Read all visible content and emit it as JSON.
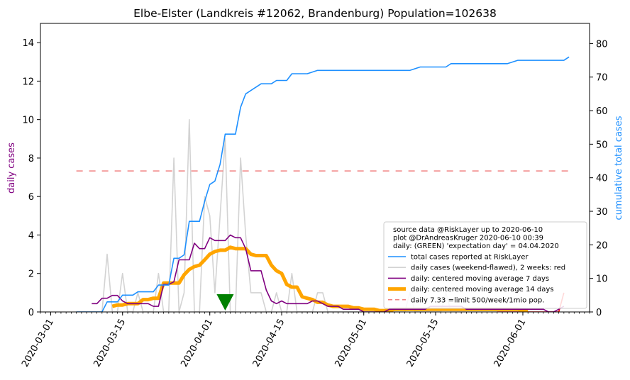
{
  "chart_data": {
    "type": "line",
    "title": "Elbe-Elster (Landkreis #12062, Brandenburg) Population=102638",
    "ylabel_left": "daily cases",
    "ylabel_right": "cumulative total cases",
    "ylim_left": [
      0,
      15
    ],
    "ylim_right": [
      0,
      86
    ],
    "yticks_left": [
      0,
      2,
      4,
      6,
      8,
      10,
      12,
      14
    ],
    "yticks_right": [
      0,
      10,
      20,
      30,
      40,
      50,
      60,
      70,
      80
    ],
    "xlim": [
      "2020-02-28",
      "2020-06-14"
    ],
    "xticks": [
      "2020-03-01",
      "2020-03-15",
      "2020-04-01",
      "2020-04-15",
      "2020-05-01",
      "2020-05-15",
      "2020-06-01"
    ],
    "grid": false,
    "legend_position": "lower-right",
    "legend_header": [
      "source data @RiskLayer up to 2020-06-10",
      "plot @DrAndreasKruger 2020-06-10 00:39",
      "daily: (GREEN) 'expectation day' = 04.04.2020"
    ],
    "colors": {
      "total": "#1e90ff",
      "daily": "#d3d3d3",
      "daily_recent": "#ff0000",
      "ma7": "#800080",
      "ma14": "#ffa500",
      "limit": "#f08080",
      "expectation": "#008000"
    },
    "expectation_day": "2020-04-04",
    "series": [
      {
        "name": "total cases reported at RiskLayer",
        "axis": "right",
        "points": [
          [
            "2020-03-06",
            0
          ],
          [
            "2020-03-11",
            0
          ],
          [
            "2020-03-12",
            3
          ],
          [
            "2020-03-14",
            3
          ],
          [
            "2020-03-15",
            5
          ],
          [
            "2020-03-17",
            5
          ],
          [
            "2020-03-18",
            6
          ],
          [
            "2020-03-21",
            6
          ],
          [
            "2020-03-22",
            8
          ],
          [
            "2020-03-24",
            8
          ],
          [
            "2020-03-25",
            16
          ],
          [
            "2020-03-26",
            16
          ],
          [
            "2020-03-27",
            17
          ],
          [
            "2020-03-28",
            27
          ],
          [
            "2020-03-30",
            27
          ],
          [
            "2020-03-31",
            33
          ],
          [
            "2020-04-01",
            38
          ],
          [
            "2020-04-02",
            39
          ],
          [
            "2020-04-03",
            44
          ],
          [
            "2020-04-04",
            53
          ],
          [
            "2020-04-06",
            53
          ],
          [
            "2020-04-07",
            61
          ],
          [
            "2020-04-08",
            65
          ],
          [
            "2020-04-10",
            67
          ],
          [
            "2020-04-11",
            68
          ],
          [
            "2020-04-13",
            68
          ],
          [
            "2020-04-14",
            69
          ],
          [
            "2020-04-16",
            69
          ],
          [
            "2020-04-17",
            71
          ],
          [
            "2020-04-20",
            71
          ],
          [
            "2020-04-22",
            72
          ],
          [
            "2020-05-10",
            72
          ],
          [
            "2020-05-12",
            73
          ],
          [
            "2020-05-17",
            73
          ],
          [
            "2020-05-18",
            74
          ],
          [
            "2020-05-29",
            74
          ],
          [
            "2020-05-31",
            75
          ],
          [
            "2020-06-09",
            75
          ],
          [
            "2020-06-10",
            76
          ]
        ]
      },
      {
        "name": "daily cases (weekend-flawed), 2 weeks: red",
        "axis": "left",
        "points": [
          [
            "2020-03-06",
            0
          ],
          [
            "2020-03-11",
            0
          ],
          [
            "2020-03-12",
            3
          ],
          [
            "2020-03-13",
            0
          ],
          [
            "2020-03-14",
            0
          ],
          [
            "2020-03-15",
            2
          ],
          [
            "2020-03-16",
            0
          ],
          [
            "2020-03-17",
            0
          ],
          [
            "2020-03-18",
            1
          ],
          [
            "2020-03-19",
            0
          ],
          [
            "2020-03-20",
            0
          ],
          [
            "2020-03-21",
            0
          ],
          [
            "2020-03-22",
            2
          ],
          [
            "2020-03-23",
            0
          ],
          [
            "2020-03-24",
            0
          ],
          [
            "2020-03-25",
            8
          ],
          [
            "2020-03-26",
            0
          ],
          [
            "2020-03-27",
            1
          ],
          [
            "2020-03-28",
            10
          ],
          [
            "2020-03-29",
            0
          ],
          [
            "2020-03-30",
            0
          ],
          [
            "2020-03-31",
            6
          ],
          [
            "2020-04-01",
            5
          ],
          [
            "2020-04-02",
            1
          ],
          [
            "2020-04-03",
            5
          ],
          [
            "2020-04-04",
            9
          ],
          [
            "2020-04-05",
            0
          ],
          [
            "2020-04-06",
            0
          ],
          [
            "2020-04-07",
            8
          ],
          [
            "2020-04-08",
            4
          ],
          [
            "2020-04-09",
            1
          ],
          [
            "2020-04-10",
            1
          ],
          [
            "2020-04-11",
            1
          ],
          [
            "2020-04-12",
            0
          ],
          [
            "2020-04-13",
            0
          ],
          [
            "2020-04-14",
            1
          ],
          [
            "2020-04-15",
            0
          ],
          [
            "2020-04-16",
            0
          ],
          [
            "2020-04-17",
            2
          ],
          [
            "2020-04-18",
            0
          ],
          [
            "2020-04-19",
            0
          ],
          [
            "2020-04-20",
            0
          ],
          [
            "2020-04-21",
            0
          ],
          [
            "2020-04-22",
            1
          ],
          [
            "2020-04-23",
            1
          ],
          [
            "2020-04-24",
            0
          ],
          [
            "2020-05-09",
            0
          ],
          [
            "2020-05-10",
            1
          ],
          [
            "2020-05-11",
            0
          ],
          [
            "2020-05-16",
            0
          ],
          [
            "2020-05-17",
            1
          ],
          [
            "2020-05-18",
            0
          ],
          [
            "2020-05-26",
            0
          ],
          [
            "2020-05-27",
            0
          ],
          [
            "2020-06-08",
            0
          ],
          [
            "2020-06-09",
            1
          ]
        ]
      },
      {
        "name": "daily: centered moving average 7 days",
        "axis": "left",
        "points": [
          [
            "2020-03-09",
            0.43
          ],
          [
            "2020-03-10",
            0.43
          ],
          [
            "2020-03-11",
            0.71
          ],
          [
            "2020-03-12",
            0.71
          ],
          [
            "2020-03-13",
            0.86
          ],
          [
            "2020-03-14",
            0.86
          ],
          [
            "2020-03-15",
            0.57
          ],
          [
            "2020-03-16",
            0.43
          ],
          [
            "2020-03-17",
            0.43
          ],
          [
            "2020-03-18",
            0.43
          ],
          [
            "2020-03-19",
            0.43
          ],
          [
            "2020-03-20",
            0.43
          ],
          [
            "2020-03-21",
            0.29
          ],
          [
            "2020-03-22",
            0.29
          ],
          [
            "2020-03-23",
            1.43
          ],
          [
            "2020-03-24",
            1.43
          ],
          [
            "2020-03-25",
            1.57
          ],
          [
            "2020-03-26",
            2.71
          ],
          [
            "2020-03-27",
            2.71
          ],
          [
            "2020-03-28",
            2.71
          ],
          [
            "2020-03-29",
            3.57
          ],
          [
            "2020-03-30",
            3.29
          ],
          [
            "2020-03-31",
            3.29
          ],
          [
            "2020-04-01",
            3.86
          ],
          [
            "2020-04-02",
            3.71
          ],
          [
            "2020-04-03",
            3.71
          ],
          [
            "2020-04-04",
            3.71
          ],
          [
            "2020-04-05",
            4.0
          ],
          [
            "2020-04-06",
            3.86
          ],
          [
            "2020-04-07",
            3.86
          ],
          [
            "2020-04-08",
            3.29
          ],
          [
            "2020-04-09",
            2.14
          ],
          [
            "2020-04-10",
            2.14
          ],
          [
            "2020-04-11",
            2.14
          ],
          [
            "2020-04-12",
            1.14
          ],
          [
            "2020-04-13",
            0.57
          ],
          [
            "2020-04-14",
            0.43
          ],
          [
            "2020-04-15",
            0.57
          ],
          [
            "2020-04-16",
            0.43
          ],
          [
            "2020-04-17",
            0.43
          ],
          [
            "2020-04-18",
            0.43
          ],
          [
            "2020-04-19",
            0.43
          ],
          [
            "2020-04-20",
            0.43
          ],
          [
            "2020-04-21",
            0.57
          ],
          [
            "2020-04-22",
            0.57
          ],
          [
            "2020-04-23",
            0.43
          ],
          [
            "2020-04-24",
            0.29
          ],
          [
            "2020-04-25",
            0.29
          ],
          [
            "2020-04-26",
            0.29
          ],
          [
            "2020-04-27",
            0.14
          ],
          [
            "2020-04-28",
            0.14
          ],
          [
            "2020-04-29",
            0.14
          ],
          [
            "2020-04-30",
            0.14
          ],
          [
            "2020-05-01",
            0.0
          ],
          [
            "2020-05-05",
            0.0
          ],
          [
            "2020-05-06",
            0.14
          ],
          [
            "2020-05-13",
            0.14
          ],
          [
            "2020-05-14",
            0.29
          ],
          [
            "2020-05-20",
            0.29
          ],
          [
            "2020-05-21",
            0.14
          ],
          [
            "2020-06-05",
            0.14
          ],
          [
            "2020-06-06",
            0.0
          ],
          [
            "2020-06-07",
            0.0
          ],
          [
            "2020-06-08",
            0.14
          ],
          [
            "2020-06-09",
            0.29
          ]
        ]
      },
      {
        "name": "daily: centered moving average 14 days",
        "axis": "left",
        "points": [
          [
            "2020-03-13",
            0.29
          ],
          [
            "2020-03-14",
            0.36
          ],
          [
            "2020-03-15",
            0.36
          ],
          [
            "2020-03-16",
            0.43
          ],
          [
            "2020-03-17",
            0.43
          ],
          [
            "2020-03-18",
            0.43
          ],
          [
            "2020-03-19",
            0.64
          ],
          [
            "2020-03-20",
            0.64
          ],
          [
            "2020-03-21",
            0.71
          ],
          [
            "2020-03-22",
            0.71
          ],
          [
            "2020-03-23",
            1.5
          ],
          [
            "2020-03-24",
            1.5
          ],
          [
            "2020-03-25",
            1.5
          ],
          [
            "2020-03-26",
            1.5
          ],
          [
            "2020-03-27",
            1.93
          ],
          [
            "2020-03-28",
            2.21
          ],
          [
            "2020-03-29",
            2.36
          ],
          [
            "2020-03-30",
            2.43
          ],
          [
            "2020-03-31",
            2.71
          ],
          [
            "2020-04-01",
            3.0
          ],
          [
            "2020-04-02",
            3.14
          ],
          [
            "2020-04-03",
            3.21
          ],
          [
            "2020-04-04",
            3.21
          ],
          [
            "2020-04-05",
            3.36
          ],
          [
            "2020-04-06",
            3.29
          ],
          [
            "2020-04-07",
            3.29
          ],
          [
            "2020-04-08",
            3.29
          ],
          [
            "2020-04-09",
            3.0
          ],
          [
            "2020-04-10",
            2.93
          ],
          [
            "2020-04-11",
            2.93
          ],
          [
            "2020-04-12",
            2.93
          ],
          [
            "2020-04-13",
            2.43
          ],
          [
            "2020-04-14",
            2.14
          ],
          [
            "2020-04-15",
            2.0
          ],
          [
            "2020-04-16",
            1.43
          ],
          [
            "2020-04-17",
            1.29
          ],
          [
            "2020-04-18",
            1.29
          ],
          [
            "2020-04-19",
            0.79
          ],
          [
            "2020-04-20",
            0.71
          ],
          [
            "2020-04-21",
            0.64
          ],
          [
            "2020-04-22",
            0.5
          ],
          [
            "2020-04-23",
            0.5
          ],
          [
            "2020-04-24",
            0.36
          ],
          [
            "2020-04-25",
            0.29
          ],
          [
            "2020-04-26",
            0.29
          ],
          [
            "2020-04-27",
            0.29
          ],
          [
            "2020-04-28",
            0.29
          ],
          [
            "2020-04-29",
            0.21
          ],
          [
            "2020-04-30",
            0.21
          ],
          [
            "2020-05-01",
            0.14
          ],
          [
            "2020-05-02",
            0.14
          ],
          [
            "2020-05-03",
            0.14
          ],
          [
            "2020-05-04",
            0.07
          ],
          [
            "2020-05-05",
            0.07
          ],
          [
            "2020-05-06",
            0.07
          ],
          [
            "2020-05-07",
            0.14
          ],
          [
            "2020-05-12",
            0.14
          ],
          [
            "2020-05-13",
            0.14
          ],
          [
            "2020-05-19",
            0.14
          ],
          [
            "2020-05-20",
            0.14
          ],
          [
            "2020-05-21",
            0.14
          ],
          [
            "2020-05-22",
            0.14
          ],
          [
            "2020-05-31",
            0.14
          ],
          [
            "2020-06-01",
            0.07
          ],
          [
            "2020-06-02",
            0.07
          ]
        ]
      }
    ],
    "limit_line": {
      "name": "daily 7.33 =limit 500/week/1mio pop.",
      "value": 7.33,
      "from": "2020-03-06",
      "to": "2020-06-10"
    }
  }
}
